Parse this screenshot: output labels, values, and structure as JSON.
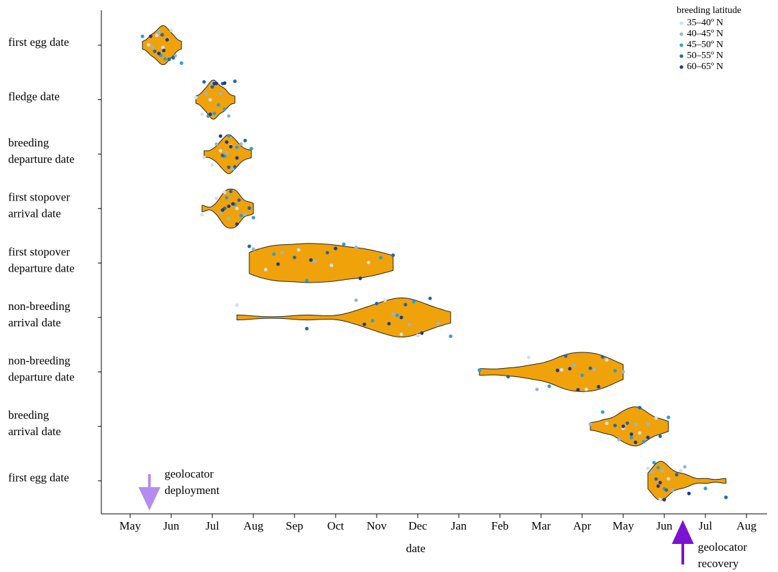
{
  "chart_data": {
    "type": "violin",
    "xlabel": "date",
    "xlim": [
      -0.7,
      15.5
    ],
    "xticks": [
      {
        "value": 0,
        "label": "May"
      },
      {
        "value": 1,
        "label": "Jun"
      },
      {
        "value": 2,
        "label": "Jul"
      },
      {
        "value": 3,
        "label": "Aug"
      },
      {
        "value": 4,
        "label": "Sep"
      },
      {
        "value": 5,
        "label": "Oct"
      },
      {
        "value": 6,
        "label": "Nov"
      },
      {
        "value": 7,
        "label": "Dec"
      },
      {
        "value": 8,
        "label": "Jan"
      },
      {
        "value": 9,
        "label": "Feb"
      },
      {
        "value": 10,
        "label": "Mar"
      },
      {
        "value": 11,
        "label": "Apr"
      },
      {
        "value": 12,
        "label": "May"
      },
      {
        "value": 13,
        "label": "Jun"
      },
      {
        "value": 14,
        "label": "Jul"
      },
      {
        "value": 15,
        "label": "Aug"
      }
    ],
    "categories": [
      [
        "first egg date"
      ],
      [
        "fledge date"
      ],
      [
        "breeding",
        "departure date"
      ],
      [
        "first stopover",
        "arrival date"
      ],
      [
        "first stopover",
        "departure date"
      ],
      [
        "non-breeding",
        "arrival date"
      ],
      [
        "non-breeding",
        "departure date"
      ],
      [
        "breeding",
        "arrival date"
      ],
      [
        "first egg date"
      ]
    ],
    "violin_color": "#f0a20a",
    "legend_title": "breeding latitude",
    "legend": "top-right",
    "series": [
      {
        "name": "35–40º N",
        "color": "#cfe1ee",
        "x": [
          0.45,
          0.8,
          1.0,
          0.65,
          1.6,
          1.95,
          2.1,
          1.75,
          1.8,
          2.2,
          2.45,
          2.0,
          1.75,
          2.3,
          2.6,
          2.1,
          3.3,
          4.1,
          4.9,
          5.8,
          2.6,
          6.2,
          6.6,
          7.0,
          9.7,
          10.5,
          11.1,
          11.6,
          11.6,
          12.0,
          12.4,
          12.8,
          12.6,
          12.9,
          13.1,
          13.4
        ],
        "row": [
          0,
          0,
          0,
          0,
          1,
          1,
          1,
          1,
          2,
          2,
          2,
          2,
          3,
          3,
          3,
          3,
          4,
          4,
          4,
          4,
          5,
          5,
          5,
          5,
          6,
          6,
          6,
          6,
          7,
          7,
          7,
          7,
          8,
          8,
          8,
          8
        ]
      },
      {
        "name": "40–45º N",
        "color": "#93b7d4",
        "x": [
          0.55,
          0.9,
          0.7,
          1.1,
          1.85,
          2.2,
          2.0,
          2.4,
          2.1,
          2.5,
          2.35,
          2.7,
          2.2,
          2.5,
          2.4,
          2.8,
          3.0,
          3.7,
          4.5,
          5.5,
          5.5,
          6.4,
          6.8,
          7.5,
          9.9,
          10.8,
          11.3,
          12.0,
          11.2,
          11.9,
          12.3,
          12.6,
          12.7,
          12.95,
          13.2,
          13.5
        ],
        "row": [
          0,
          0,
          0,
          0,
          1,
          1,
          1,
          1,
          2,
          2,
          2,
          2,
          3,
          3,
          3,
          3,
          4,
          4,
          4,
          4,
          5,
          5,
          5,
          5,
          6,
          6,
          6,
          6,
          7,
          7,
          7,
          7,
          8,
          8,
          8,
          8
        ]
      },
      {
        "name": "45–50º N",
        "color": "#2a9fd6",
        "x": [
          0.3,
          0.75,
          0.85,
          1.25,
          1.9,
          2.05,
          2.3,
          2.15,
          2.3,
          2.4,
          2.6,
          2.95,
          2.35,
          2.55,
          2.7,
          3.0,
          3.5,
          4.3,
          5.2,
          6.1,
          5.9,
          6.5,
          6.9,
          7.8,
          8.5,
          10.2,
          11.0,
          11.8,
          11.5,
          12.2,
          12.5,
          13.1,
          12.75,
          12.85,
          13.0,
          14.0
        ],
        "row": [
          0,
          0,
          0,
          0,
          1,
          1,
          1,
          1,
          2,
          2,
          2,
          2,
          3,
          3,
          3,
          3,
          4,
          4,
          4,
          4,
          5,
          5,
          5,
          5,
          6,
          6,
          6,
          6,
          7,
          7,
          7,
          7,
          8,
          8,
          8,
          8
        ]
      },
      {
        "name": "50–55º N",
        "color": "#2166ac",
        "x": [
          0.6,
          0.95,
          0.78,
          1.05,
          2.0,
          1.8,
          2.25,
          2.55,
          2.25,
          2.55,
          2.4,
          2.8,
          2.3,
          2.45,
          2.65,
          2.9,
          2.9,
          4.0,
          4.8,
          6.4,
          4.3,
          6.0,
          6.7,
          7.3,
          9.2,
          10.6,
          11.2,
          11.5,
          11.8,
          12.1,
          12.4,
          12.9,
          12.8,
          13.05,
          13.3,
          14.5
        ],
        "row": [
          0,
          0,
          0,
          0,
          1,
          1,
          1,
          1,
          2,
          2,
          2,
          2,
          3,
          3,
          3,
          3,
          4,
          4,
          4,
          4,
          5,
          5,
          5,
          5,
          6,
          6,
          6,
          6,
          7,
          7,
          7,
          7,
          8,
          8,
          8,
          8
        ]
      },
      {
        "name": "60–65º N",
        "color": "#1d3a8c",
        "x": [
          0.7,
          0.82,
          0.5,
          0.9,
          2.1,
          1.95,
          2.05,
          2.3,
          2.35,
          2.45,
          2.2,
          2.6,
          2.4,
          2.5,
          2.25,
          2.6,
          3.6,
          4.4,
          5.0,
          5.6,
          6.3,
          6.6,
          7.1,
          5.7,
          10.4,
          10.9,
          11.4,
          10.7,
          12.0,
          12.2,
          12.6,
          12.3,
          12.9,
          13.0,
          12.85,
          13.6
        ],
        "row": [
          0,
          0,
          0,
          0,
          1,
          1,
          1,
          1,
          2,
          2,
          2,
          2,
          3,
          3,
          3,
          3,
          4,
          4,
          4,
          4,
          5,
          5,
          5,
          5,
          6,
          6,
          6,
          6,
          7,
          7,
          7,
          7,
          8,
          8,
          8,
          8
        ]
      }
    ],
    "annotations": [
      {
        "text": [
          "geolocator",
          "deployment"
        ],
        "x": 0.47,
        "color": "#b48cf0"
      },
      {
        "text": [
          "geolocator",
          "recovery"
        ],
        "x": 13.45,
        "color": "#7b12d4"
      }
    ]
  }
}
